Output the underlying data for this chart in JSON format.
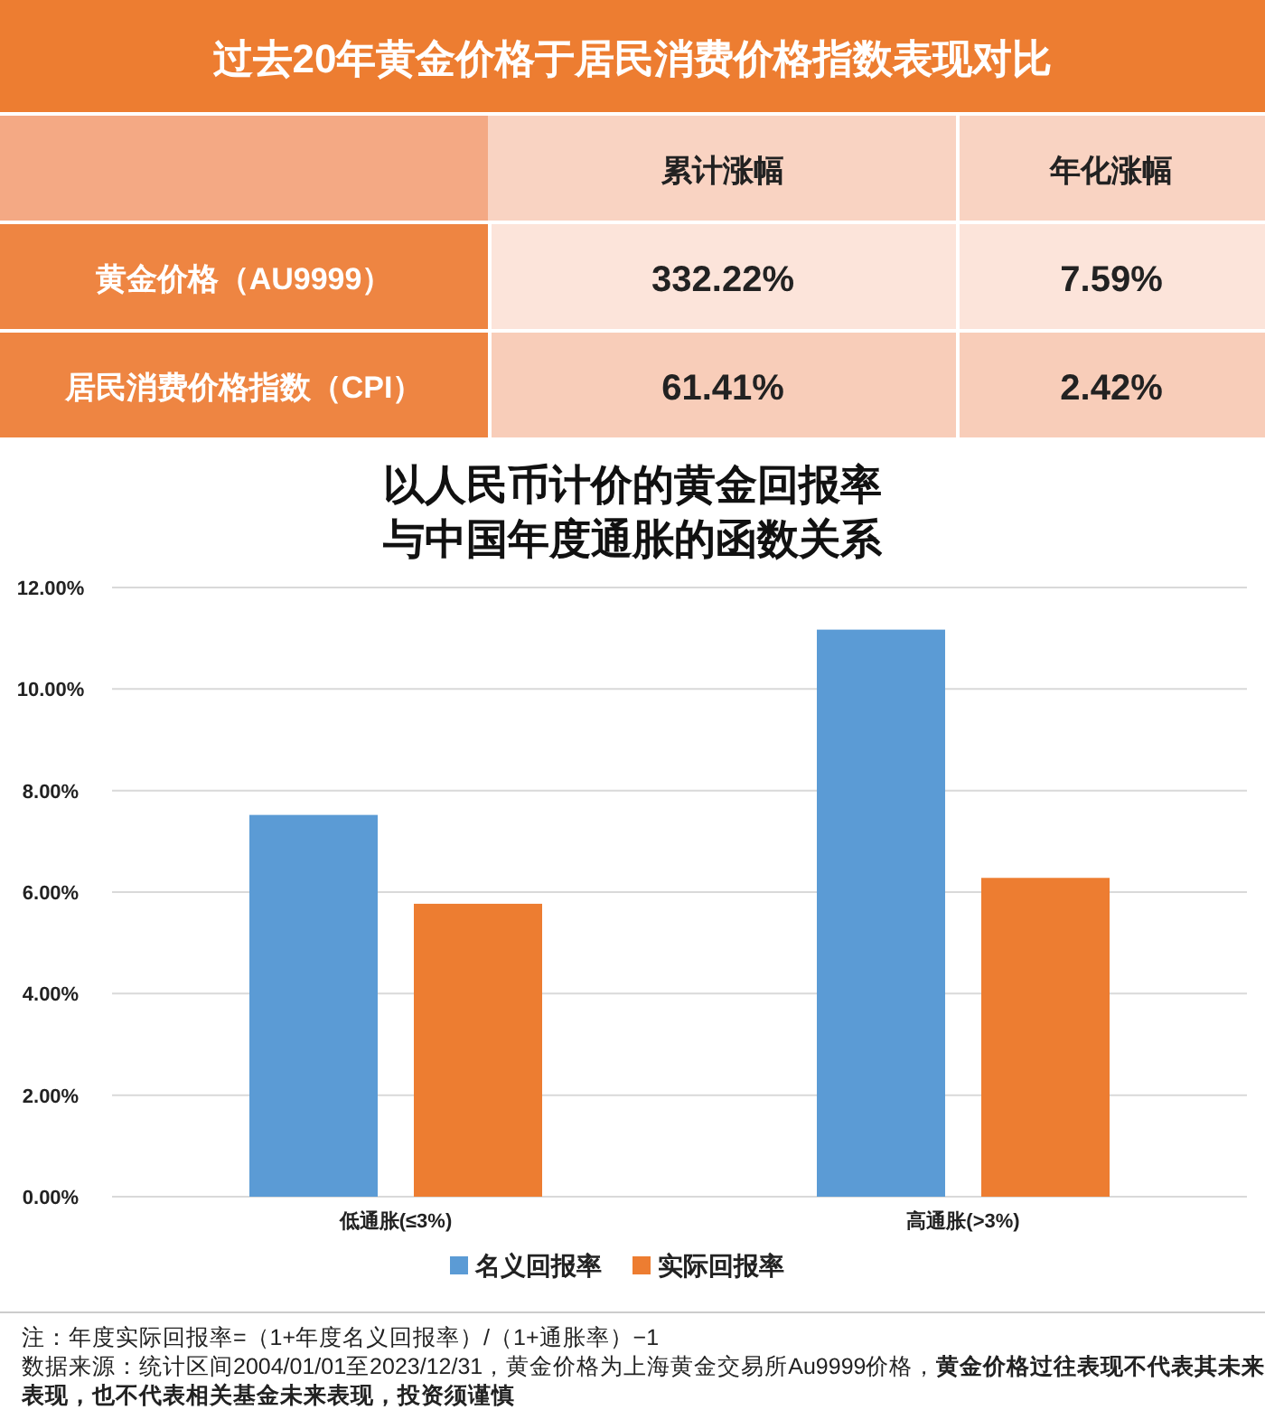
{
  "chart_data": [
    {
      "type": "other",
      "title": "过去20年黄金价格于居民消费价格指数表现对比",
      "categories": [
        "累计涨幅",
        "年化涨幅"
      ],
      "y_categories": [
        "黄金价格（AU9999）",
        "居民消费价格指数（CPI）"
      ],
      "cell_labels": [
        [
          "332.22%",
          "7.59%"
        ],
        [
          "61.41%",
          "2.42%"
        ]
      ]
    },
    {
      "type": "bar",
      "title": "以人民币计价的黄金回报率与中国年度通胀的函数关系",
      "categories": [
        "低通胀(≤3%)",
        "高通胀(>3%)"
      ],
      "series": [
        {
          "name": "名义回报率",
          "color": "#5b9bd5",
          "values": [
            7.52,
            11.17
          ]
        },
        {
          "name": "实际回报率",
          "color": "#ed7d31",
          "values": [
            5.77,
            6.28
          ]
        }
      ],
      "ylim": [
        0,
        12
      ],
      "yticks": [
        {
          "value": 0,
          "label": "0.00%"
        },
        {
          "value": 2,
          "label": "2.00%"
        },
        {
          "value": 4,
          "label": "4.00%"
        },
        {
          "value": 6,
          "label": "6.00%"
        },
        {
          "value": 8,
          "label": "8.00%"
        },
        {
          "value": 10,
          "label": "10.00%"
        },
        {
          "value": 12,
          "label": "12.00%"
        }
      ],
      "grid": "y",
      "legend": "bottom",
      "annotations": [
        "注：年度实际回报率=（1+年度名义回报率）/（1+通胀率）−1",
        "数据来源：统计区间2004/01/01至2023/12/31，黄金价格为上海黄金交易所Au9999价格，**黄金价格过往表现不代表其未来表现，也不代表相关基金未来表现，投资须谨慎**"
      ]
    }
  ]
}
